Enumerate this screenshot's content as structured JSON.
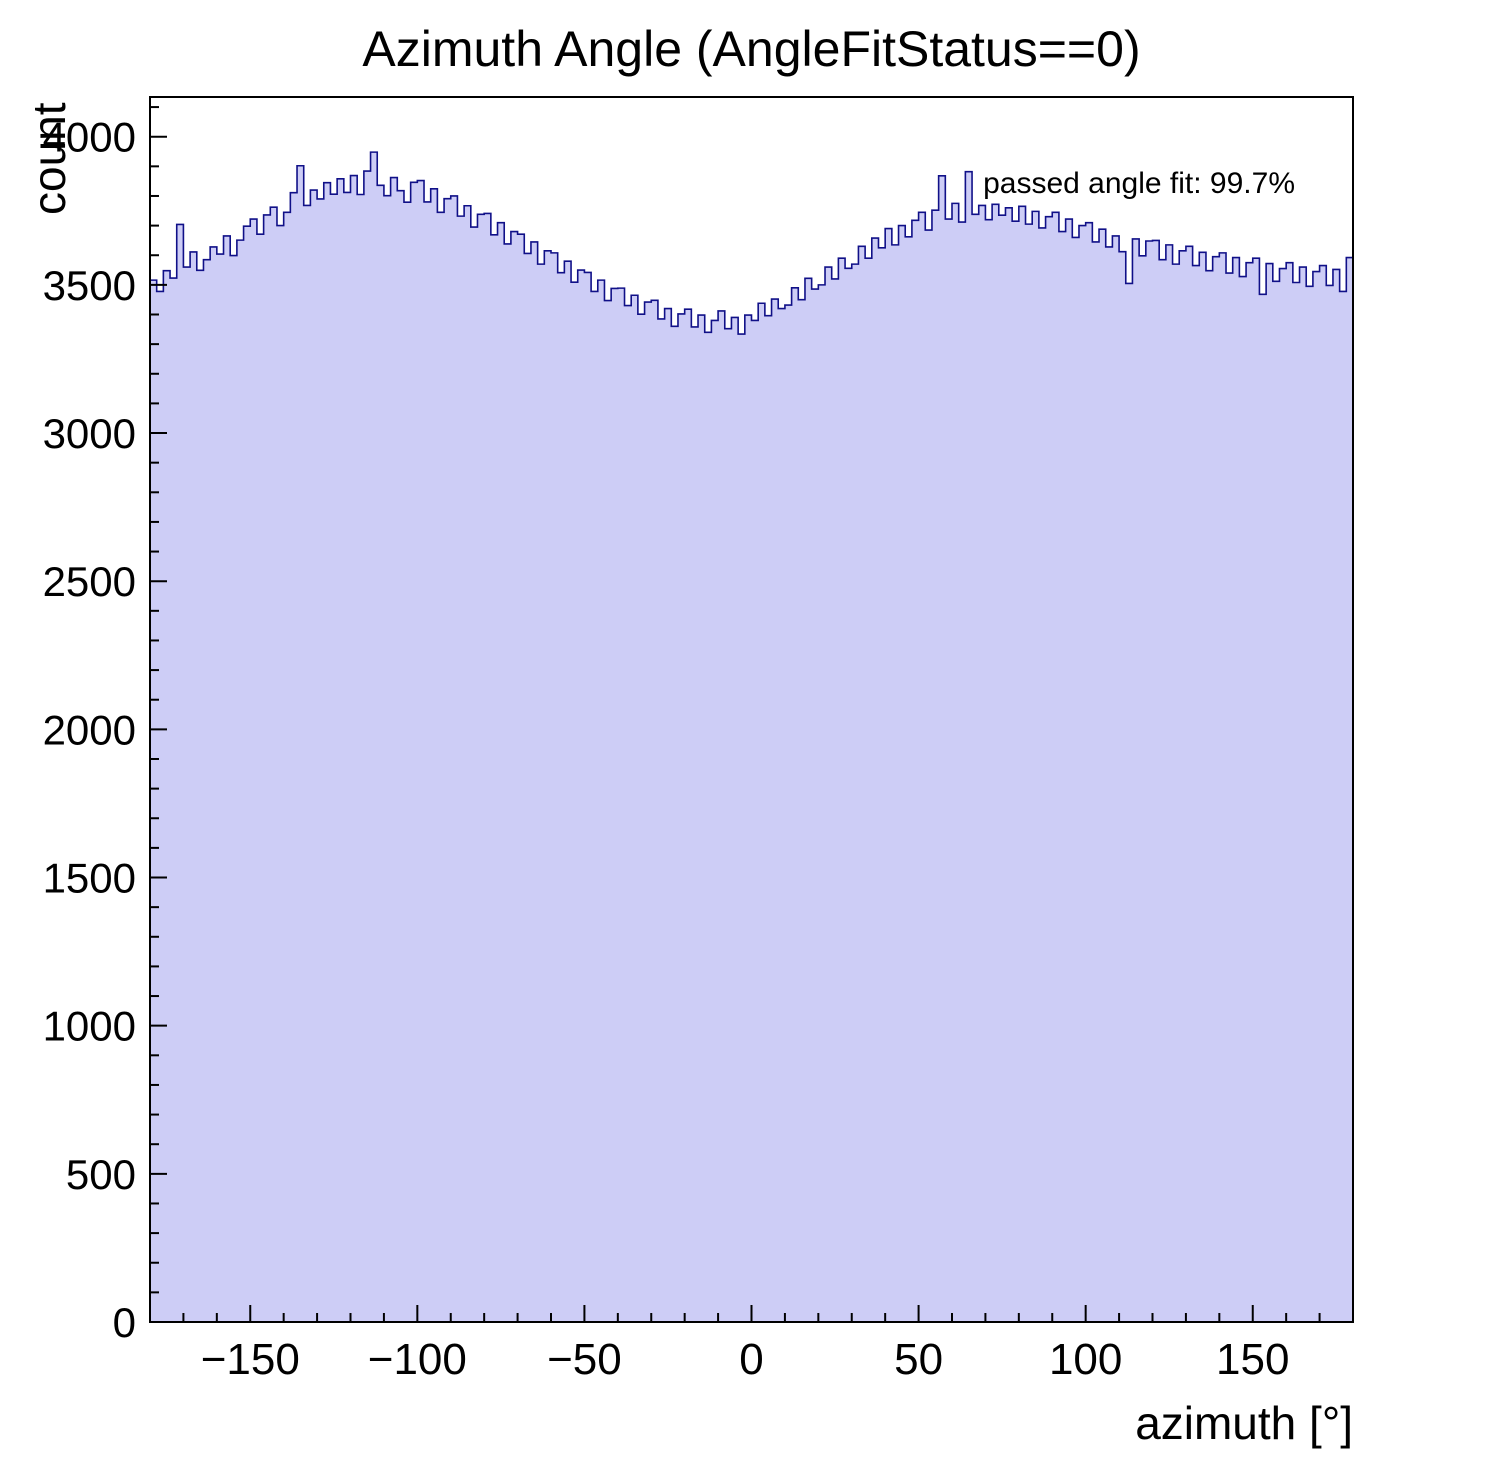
{
  "page": {
    "background": "#ffffff"
  },
  "chart_data": {
    "type": "bar",
    "subtype": "histogram",
    "title": "Azimuth Angle (AngleFitStatus==0)",
    "xlabel": "azimuth [°]",
    "ylabel": "count",
    "annotation": "passed angle fit: 99.7%",
    "legend": "none",
    "grid": false,
    "xlim": [
      -180,
      180
    ],
    "ylim": [
      0,
      4134
    ],
    "bin_start": -180,
    "bin_width": 2,
    "x_ticks": {
      "values": [
        -150,
        -100,
        -50,
        0,
        50,
        100,
        150
      ],
      "labels": [
        "−150",
        "−100",
        "−50",
        "0",
        "50",
        "100",
        "150"
      ]
    },
    "y_ticks": {
      "values": [
        0,
        500,
        1000,
        1500,
        2000,
        2500,
        3000,
        3500,
        4000
      ],
      "labels": [
        "0",
        "500",
        "1000",
        "1500",
        "2000",
        "2500",
        "3000",
        "3500",
        "4000"
      ]
    },
    "x_minor_step": 10,
    "y_minor_step": 100,
    "colors": {
      "fill": "#cdcdf6",
      "line": "#101088",
      "frame": "#000000",
      "text": "#000000"
    },
    "values": [
      3516,
      3478,
      3548,
      3523,
      3704,
      3560,
      3611,
      3549,
      3585,
      3628,
      3604,
      3665,
      3599,
      3651,
      3698,
      3722,
      3671,
      3736,
      3762,
      3700,
      3745,
      3811,
      3902,
      3768,
      3820,
      3790,
      3845,
      3806,
      3858,
      3812,
      3869,
      3805,
      3884,
      3948,
      3836,
      3801,
      3862,
      3818,
      3779,
      3846,
      3852,
      3780,
      3824,
      3745,
      3791,
      3800,
      3732,
      3767,
      3695,
      3738,
      3741,
      3669,
      3710,
      3638,
      3680,
      3671,
      3606,
      3645,
      3570,
      3615,
      3608,
      3541,
      3580,
      3509,
      3550,
      3542,
      3478,
      3516,
      3447,
      3488,
      3489,
      3430,
      3465,
      3401,
      3442,
      3448,
      3385,
      3420,
      3360,
      3402,
      3418,
      3358,
      3398,
      3340,
      3380,
      3412,
      3352,
      3390,
      3334,
      3398,
      3380,
      3438,
      3396,
      3452,
      3420,
      3432,
      3490,
      3450,
      3522,
      3486,
      3500,
      3560,
      3520,
      3590,
      3556,
      3570,
      3630,
      3590,
      3658,
      3625,
      3690,
      3635,
      3700,
      3662,
      3718,
      3745,
      3685,
      3752,
      3868,
      3722,
      3775,
      3712,
      3882,
      3738,
      3768,
      3720,
      3772,
      3735,
      3760,
      3715,
      3765,
      3705,
      3748,
      3692,
      3730,
      3745,
      3680,
      3722,
      3660,
      3700,
      3710,
      3645,
      3688,
      3628,
      3665,
      3612,
      3505,
      3655,
      3598,
      3648,
      3650,
      3585,
      3635,
      3570,
      3615,
      3630,
      3565,
      3610,
      3548,
      3595,
      3608,
      3540,
      3592,
      3528,
      3575,
      3590,
      3468,
      3572,
      3512,
      3555,
      3575,
      3508,
      3560,
      3495,
      3545,
      3565,
      3498,
      3552,
      3478,
      3592
    ]
  }
}
